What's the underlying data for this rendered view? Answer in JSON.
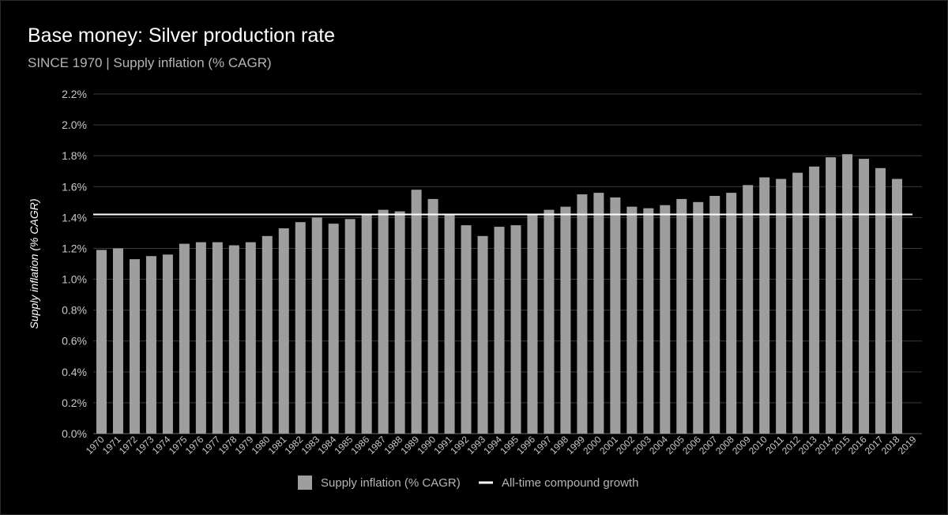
{
  "chart_data": {
    "type": "bar",
    "title": "Base money: Silver production rate",
    "subtitle": "SINCE 1970 | Supply inflation (% CAGR)",
    "xlabel": "",
    "ylabel": "Supply inflation (% CAGR)",
    "ylim": [
      0,
      2.2
    ],
    "yticks": [
      0.0,
      0.2,
      0.4,
      0.6,
      0.8,
      1.0,
      1.2,
      1.4,
      1.6,
      1.8,
      2.0,
      2.2
    ],
    "ytick_labels": [
      "0.0%",
      "0.2%",
      "0.4%",
      "0.6%",
      "0.8%",
      "1.0%",
      "1.2%",
      "1.4%",
      "1.6%",
      "1.8%",
      "2.0%",
      "2.2%"
    ],
    "grid": true,
    "legend_position": "bottom",
    "categories": [
      "1970",
      "1971",
      "1972",
      "1973",
      "1974",
      "1975",
      "1976",
      "1977",
      "1978",
      "1979",
      "1980",
      "1981",
      "1982",
      "1983",
      "1984",
      "1985",
      "1986",
      "1987",
      "1988",
      "1989",
      "1990",
      "1991",
      "1992",
      "1993",
      "1994",
      "1995",
      "1996",
      "1997",
      "1998",
      "1999",
      "2000",
      "2001",
      "2002",
      "2003",
      "2004",
      "2005",
      "2006",
      "2007",
      "2008",
      "2009",
      "2010",
      "2011",
      "2012",
      "2013",
      "2014",
      "2015",
      "2016",
      "2017",
      "2018",
      "2019"
    ],
    "series": [
      {
        "name": "Supply inflation (% CAGR)",
        "type": "bar",
        "color": "#9e9e9e",
        "values": [
          1.19,
          1.2,
          1.13,
          1.15,
          1.16,
          1.23,
          1.24,
          1.24,
          1.22,
          1.24,
          1.28,
          1.33,
          1.37,
          1.4,
          1.36,
          1.39,
          1.42,
          1.45,
          1.44,
          1.58,
          1.52,
          1.42,
          1.35,
          1.28,
          1.34,
          1.35,
          1.42,
          1.45,
          1.47,
          1.55,
          1.56,
          1.53,
          1.47,
          1.46,
          1.48,
          1.52,
          1.5,
          1.54,
          1.56,
          1.61,
          1.66,
          1.65,
          1.69,
          1.73,
          1.79,
          1.81,
          1.78,
          1.72,
          1.65,
          null
        ]
      },
      {
        "name": "All-time compound growth",
        "type": "line",
        "color": "#ffffff",
        "value": 1.42
      }
    ],
    "colors": {
      "background": "#000000",
      "grid": "#3a3a3a",
      "text": "#ffffff",
      "muted": "#b5b5b5",
      "tick": "#c8c8c8"
    }
  }
}
